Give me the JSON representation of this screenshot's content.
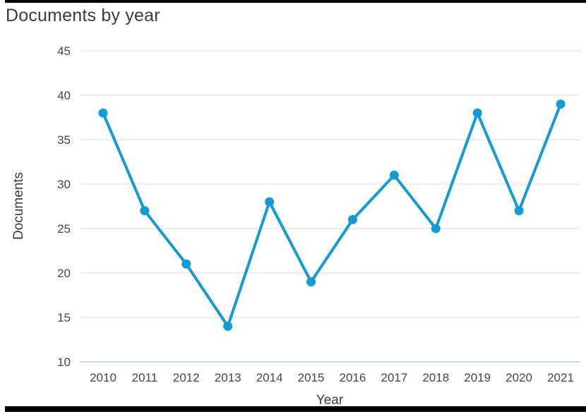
{
  "title": "Documents by year",
  "axis": {
    "x_label": "Year",
    "y_label": "Documents"
  },
  "colors": {
    "accent": "#149bd6",
    "gridline": "#e7e7e7",
    "baseline": "#ccdaeb",
    "text": "#3c3c3c",
    "tick_text": "#464646",
    "frame_bar": "#000000"
  },
  "chart_data": {
    "type": "line",
    "title": "Documents by year",
    "xlabel": "Year",
    "ylabel": "Documents",
    "x": [
      2010,
      2011,
      2012,
      2013,
      2014,
      2015,
      2016,
      2017,
      2018,
      2019,
      2020,
      2021
    ],
    "series": [
      {
        "name": "Documents",
        "values": [
          38,
          27,
          21,
          14,
          28,
          19,
          26,
          31,
          25,
          38,
          27,
          39
        ]
      }
    ],
    "ylim": [
      10,
      45
    ],
    "yticks": [
      10,
      15,
      20,
      25,
      30,
      35,
      40,
      45
    ],
    "grid": "horizontal",
    "legend": "none",
    "marker": "circle",
    "line_color": "#149bd6"
  }
}
